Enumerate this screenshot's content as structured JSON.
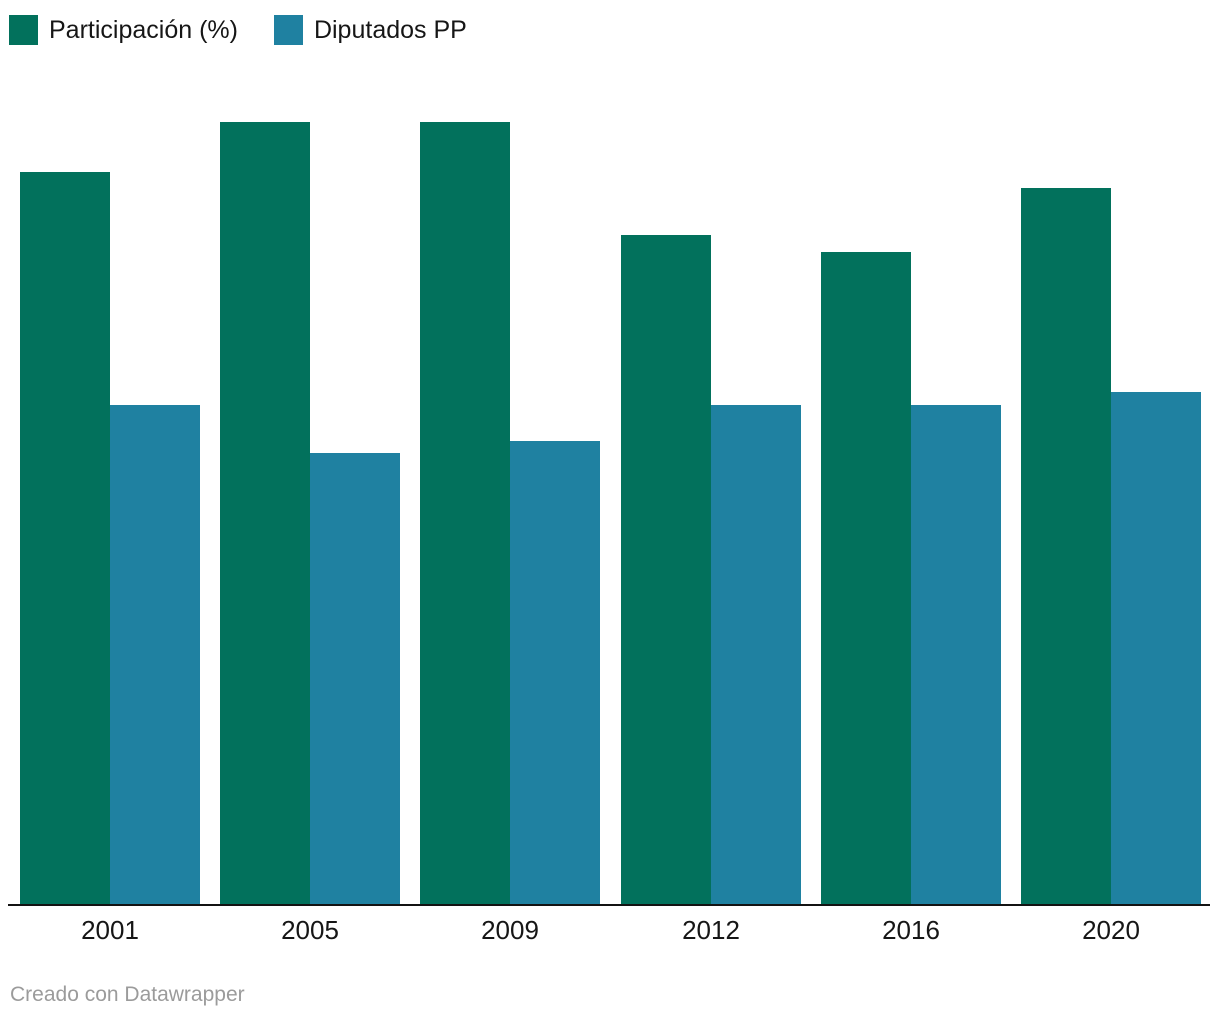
{
  "chart_data": {
    "type": "bar",
    "grouped": true,
    "title": "",
    "xlabel": "",
    "ylabel": "",
    "categories": [
      "2001",
      "2005",
      "2009",
      "2012",
      "2016",
      "2020"
    ],
    "series": [
      {
        "key": "participacion",
        "name": "Participación (%)",
        "color": "#02715C",
        "values": [
          60.1,
          64.2,
          64.2,
          54.9,
          53.5,
          58.8
        ]
      },
      {
        "key": "diputados-pp",
        "name": "Diputados PP",
        "color": "#1F81A1",
        "values": [
          41,
          37,
          38,
          41,
          41,
          42
        ]
      }
    ],
    "ylim": [
      0,
      66
    ],
    "grid": false,
    "y_axis_visible": false,
    "legend_position": "top-left"
  },
  "footer": {
    "credit": "Creado con Datawrapper"
  },
  "colors": {
    "background": "#ffffff",
    "axis_line": "#131313",
    "tick_label_text": "#161616",
    "footer_text": "#9b9b9b"
  }
}
